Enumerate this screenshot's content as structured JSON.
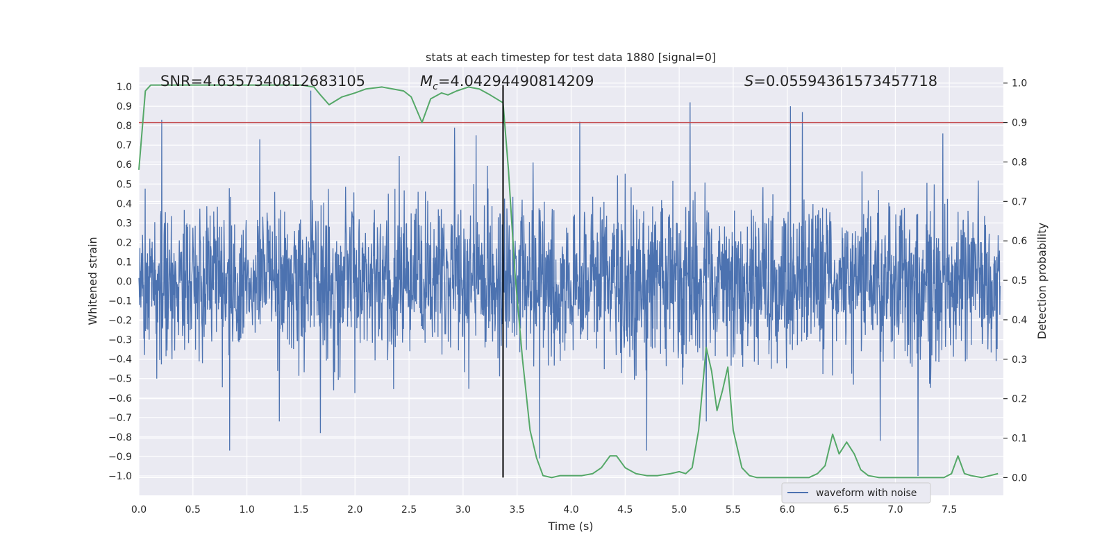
{
  "chart_data": {
    "type": "line",
    "title": "stats at each timestep for test data 1880 [signal=0]",
    "xlabel": "Time (s)",
    "ylabel": "Whitened strain",
    "y2label": "Detection probability",
    "xlim": [
      0.0,
      8.0
    ],
    "ylim": [
      -1.1,
      1.1
    ],
    "y2lim": [
      -0.045,
      1.04
    ],
    "xticks": [
      0.0,
      0.5,
      1.0,
      1.5,
      2.0,
      2.5,
      3.0,
      3.5,
      4.0,
      4.5,
      5.0,
      5.5,
      6.0,
      6.5,
      7.0,
      7.5
    ],
    "xtick_labels": [
      "0.0",
      "0.5",
      "1.0",
      "1.5",
      "2.0",
      "2.5",
      "3.0",
      "3.5",
      "4.0",
      "4.5",
      "5.0",
      "5.5",
      "6.0",
      "6.5",
      "7.0",
      "7.5"
    ],
    "yticks": [
      1.0,
      0.9,
      0.8,
      0.7,
      0.6,
      0.5,
      0.4,
      0.3,
      0.2,
      0.1,
      0.0,
      -0.1,
      -0.2,
      -0.3,
      -0.4,
      -0.5,
      -0.6,
      -0.7,
      -0.8,
      -0.9,
      -1.0
    ],
    "ytick_labels": [
      "1.0",
      "0.9",
      "0.8",
      "0.7",
      "0.6",
      "0.5",
      "0.4",
      "0.3",
      "0.2",
      "0.1",
      "0.0",
      "−0.1",
      "−0.2",
      "−0.3",
      "−0.4",
      "−0.5",
      "−0.6",
      "−0.7",
      "−0.8",
      "−0.9",
      "−1.0"
    ],
    "y2ticks": [
      1.0,
      0.9,
      0.8,
      0.7,
      0.6,
      0.5,
      0.4,
      0.3,
      0.2,
      0.1,
      0.0
    ],
    "y2tick_labels": [
      "1.0",
      "0.9",
      "0.8",
      "0.7",
      "0.6",
      "0.5",
      "0.4",
      "0.3",
      "0.2",
      "0.1",
      "0.0"
    ],
    "annotations": {
      "snr": "SNR=4.6357340812683105",
      "mc_symbol": "M",
      "mc_sub": "c",
      "mc_value": "=4.04294490814209",
      "s_symbol": "S",
      "s_value": "=0.05594361573457718"
    },
    "threshold_prob": 0.9,
    "marker_time": 3.37,
    "legend": {
      "label": "waveform with noise",
      "position": "lower right"
    },
    "colors": {
      "waveform": "#4c72b0",
      "probability": "#55a868",
      "threshold": "#c44e52",
      "marker": "#000000",
      "plot_bg": "#eaeaf2",
      "grid": "#ffffff"
    },
    "series": [
      {
        "name": "waveform with noise",
        "axis": "left",
        "description": "dense whitened strain noise, envelope roughly ±0.5 with spikes to about +0.97 and −1.0",
        "peaks_up": [
          [
            0.21,
            0.83
          ],
          [
            1.59,
            0.98
          ],
          [
            2.92,
            0.79
          ],
          [
            4.08,
            0.82
          ],
          [
            5.1,
            0.92
          ],
          [
            6.03,
            0.9
          ],
          [
            6.14,
            0.87
          ],
          [
            1.12,
            0.73
          ],
          [
            3.12,
            0.75
          ],
          [
            7.44,
            0.76
          ]
        ],
        "peaks_down": [
          [
            0.84,
            -0.87
          ],
          [
            3.71,
            -0.91
          ],
          [
            7.21,
            -1.0
          ],
          [
            4.7,
            -0.87
          ],
          [
            6.86,
            -0.82
          ],
          [
            1.68,
            -0.78
          ],
          [
            5.25,
            -0.72
          ]
        ]
      },
      {
        "name": "detection probability",
        "axis": "right",
        "x": [
          0.0,
          0.06,
          0.11,
          0.2,
          0.5,
          1.0,
          1.5,
          1.62,
          1.68,
          1.76,
          1.88,
          2.0,
          2.1,
          2.25,
          2.35,
          2.45,
          2.52,
          2.62,
          2.7,
          2.8,
          2.86,
          2.94,
          3.05,
          3.15,
          3.25,
          3.37,
          3.42,
          3.48,
          3.55,
          3.62,
          3.68,
          3.74,
          3.82,
          3.9,
          4.0,
          4.1,
          4.2,
          4.28,
          4.36,
          4.42,
          4.5,
          4.6,
          4.7,
          4.8,
          4.92,
          5.0,
          5.06,
          5.12,
          5.18,
          5.25,
          5.3,
          5.35,
          5.4,
          5.45,
          5.5,
          5.58,
          5.65,
          5.72,
          5.8,
          6.0,
          6.2,
          6.28,
          6.35,
          6.42,
          6.48,
          6.55,
          6.62,
          6.68,
          6.75,
          6.85,
          7.0,
          7.25,
          7.45,
          7.52,
          7.58,
          7.64,
          7.7,
          7.8,
          7.95
        ],
        "y": [
          0.78,
          0.98,
          0.995,
          0.995,
          0.995,
          0.995,
          0.995,
          0.99,
          0.97,
          0.945,
          0.965,
          0.975,
          0.985,
          0.99,
          0.985,
          0.98,
          0.965,
          0.9,
          0.96,
          0.975,
          0.97,
          0.98,
          0.99,
          0.985,
          0.97,
          0.95,
          0.78,
          0.52,
          0.3,
          0.12,
          0.05,
          0.005,
          0.0,
          0.005,
          0.005,
          0.005,
          0.01,
          0.025,
          0.055,
          0.055,
          0.025,
          0.01,
          0.005,
          0.005,
          0.01,
          0.015,
          0.01,
          0.025,
          0.12,
          0.33,
          0.27,
          0.17,
          0.22,
          0.28,
          0.12,
          0.025,
          0.005,
          0.0,
          0.0,
          0.0,
          0.0,
          0.01,
          0.03,
          0.11,
          0.06,
          0.09,
          0.06,
          0.02,
          0.005,
          0.0,
          0.0,
          0.0,
          0.0,
          0.01,
          0.055,
          0.01,
          0.005,
          0.0,
          0.01
        ]
      }
    ]
  }
}
